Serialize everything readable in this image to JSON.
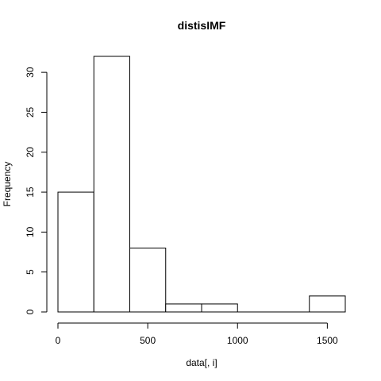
{
  "chart_data": {
    "type": "bar",
    "title": "distisIMF",
    "xlabel": "data[, i]",
    "ylabel": "Frequency",
    "bins": [
      {
        "start": 0,
        "end": 200,
        "count": 15
      },
      {
        "start": 200,
        "end": 400,
        "count": 32
      },
      {
        "start": 400,
        "end": 600,
        "count": 8
      },
      {
        "start": 600,
        "end": 800,
        "count": 1
      },
      {
        "start": 800,
        "end": 1000,
        "count": 1
      },
      {
        "start": 1000,
        "end": 1200,
        "count": 0
      },
      {
        "start": 1200,
        "end": 1400,
        "count": 0
      },
      {
        "start": 1400,
        "end": 1600,
        "count": 2
      }
    ],
    "x_ticks": [
      0,
      500,
      1000,
      1500
    ],
    "y_ticks": [
      0,
      5,
      10,
      15,
      20,
      25,
      30
    ],
    "xlim": [
      0,
      1600
    ],
    "ylim": [
      0,
      32
    ],
    "grid": false
  }
}
